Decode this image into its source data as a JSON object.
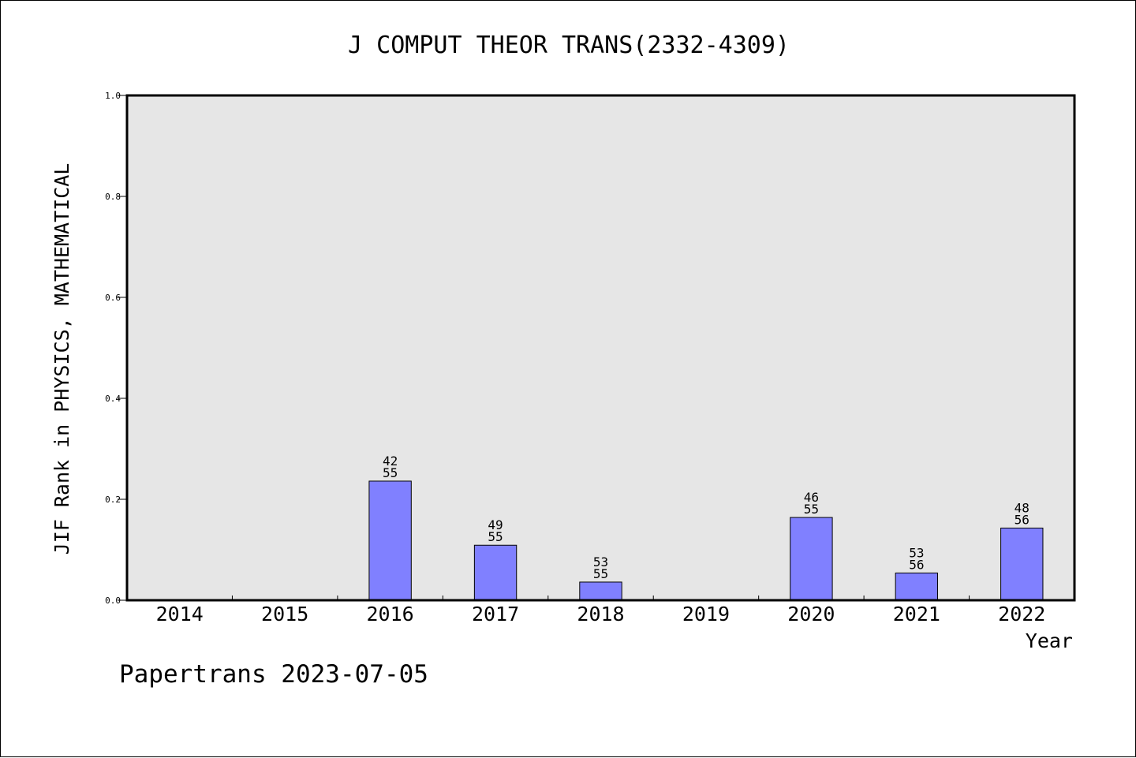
{
  "chart_data": {
    "type": "bar",
    "title": "J COMPUT THEOR TRANS(2332-4309)",
    "xlabel": "Year",
    "ylabel": "JIF Rank in PHYSICS, MATHEMATICAL",
    "categories": [
      "2014",
      "2015",
      "2016",
      "2017",
      "2018",
      "2019",
      "2020",
      "2021",
      "2022"
    ],
    "values": [
      null,
      null,
      0.236,
      0.109,
      0.036,
      null,
      0.164,
      0.054,
      0.143
    ],
    "bar_labels": [
      null,
      null,
      {
        "rank": "42",
        "total": "55"
      },
      {
        "rank": "49",
        "total": "55"
      },
      {
        "rank": "53",
        "total": "55"
      },
      null,
      {
        "rank": "46",
        "total": "55"
      },
      {
        "rank": "53",
        "total": "56"
      },
      {
        "rank": "48",
        "total": "56"
      }
    ],
    "ylim": [
      0,
      1.0
    ],
    "yticks": [
      "0.0",
      "0.2",
      "0.4",
      "0.6",
      "0.8",
      "1.0"
    ],
    "grid": false,
    "colors": {
      "bar": "#8080ff",
      "plot_background": "#e6e6e6"
    }
  },
  "footer": {
    "text": "Papertrans 2023-07-05"
  }
}
